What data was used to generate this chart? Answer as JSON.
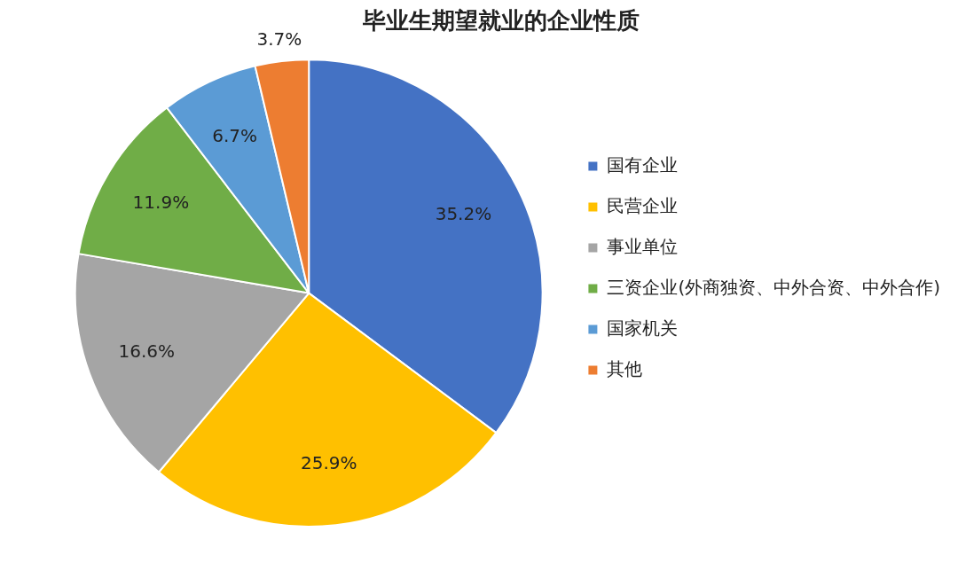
{
  "chart_data": {
    "type": "pie",
    "title": "毕业生期望就业的企业性质",
    "categories": [
      "国有企业",
      "民营企业",
      "事业单位",
      "三资企业(外商独资、中外合资、中外合作)",
      "国家机关",
      "其他"
    ],
    "values": [
      35.2,
      25.9,
      16.6,
      11.9,
      6.7,
      3.7
    ],
    "colors": [
      "#4472c4",
      "#ffc000",
      "#a5a5a5",
      "#70ad47",
      "#5b9bd5",
      "#ed7d31"
    ],
    "value_labels": [
      "35.2%",
      "25.9%",
      "16.6%",
      "11.9%",
      "6.7%",
      "3.7%"
    ],
    "legend": "right"
  }
}
